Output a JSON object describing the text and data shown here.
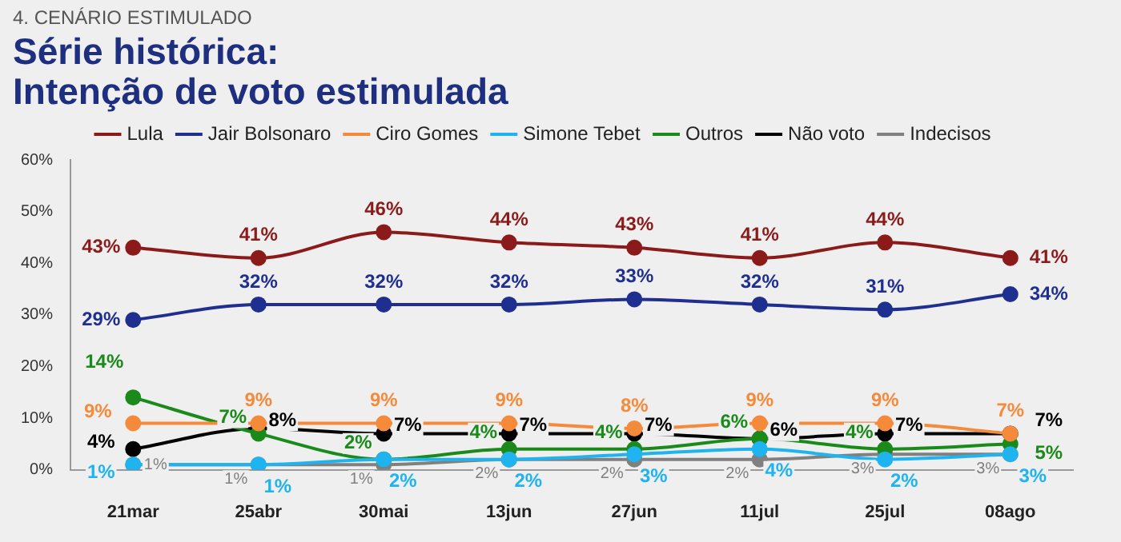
{
  "chart_data": {
    "type": "line",
    "subtitle": "4. CENÁRIO ESTIMULADO",
    "title": "Série histórica:\nIntenção de voto estimulada",
    "categories": [
      "21mar",
      "25abr",
      "30mai",
      "13jun",
      "27jun",
      "11jul",
      "25jul",
      "08ago"
    ],
    "ylim": [
      0,
      60
    ],
    "yticks": [
      {
        "value": 0,
        "label": "0%"
      },
      {
        "value": 10,
        "label": "10%"
      },
      {
        "value": 20,
        "label": "20%"
      },
      {
        "value": 30,
        "label": "30%"
      },
      {
        "value": 40,
        "label": "40%"
      },
      {
        "value": 50,
        "label": "50%"
      },
      {
        "value": 60,
        "label": "60%"
      }
    ],
    "grid": false,
    "legend": "top",
    "marker": "circle",
    "line_style": "solid",
    "series": [
      {
        "name": "Lula",
        "color": "#8b1a1a",
        "values": [
          43,
          41,
          46,
          44,
          43,
          41,
          44,
          41
        ],
        "value_labels": [
          "43%",
          "41%",
          "46%",
          "44%",
          "43%",
          "41%",
          "44%",
          "41%"
        ]
      },
      {
        "name": "Jair Bolsonaro",
        "color": "#1f2f8f",
        "values": [
          29,
          32,
          32,
          32,
          33,
          32,
          31,
          34
        ],
        "value_labels": [
          "29%",
          "32%",
          "32%",
          "32%",
          "33%",
          "32%",
          "31%",
          "34%"
        ]
      },
      {
        "name": "Ciro Gomes",
        "color": "#f58a3a",
        "values": [
          9,
          9,
          9,
          9,
          8,
          9,
          9,
          7
        ],
        "value_labels": [
          "9%",
          "9%",
          "9%",
          "9%",
          "8%",
          "9%",
          "9%",
          "7%"
        ]
      },
      {
        "name": "Simone Tebet",
        "color": "#1fb4ef",
        "values": [
          1,
          1,
          2,
          2,
          3,
          4,
          2,
          3
        ],
        "value_labels": [
          "1%",
          "1%",
          "2%",
          "2%",
          "3%",
          "4%",
          "2%",
          "3%"
        ]
      },
      {
        "name": "Outros",
        "color": "#1a8a1a",
        "values": [
          14,
          7,
          2,
          4,
          4,
          6,
          4,
          5
        ],
        "value_labels": [
          "14%",
          "7%",
          "2%",
          "4%",
          "4%",
          "6%",
          "4%",
          "5%"
        ]
      },
      {
        "name": "Não voto",
        "color": "#000000",
        "values": [
          4,
          8,
          7,
          7,
          7,
          6,
          7,
          7
        ],
        "value_labels": [
          "4%",
          "8%",
          "7%",
          "7%",
          "7%",
          "6%",
          "7%",
          "7%"
        ]
      },
      {
        "name": "Indecisos",
        "color": "#808080",
        "values": [
          1,
          1,
          1,
          2,
          2,
          2,
          3,
          3
        ],
        "value_labels": [
          "1%",
          "1%",
          "1%",
          "2%",
          "2%",
          "2%",
          "3%",
          "3%"
        ]
      }
    ]
  }
}
